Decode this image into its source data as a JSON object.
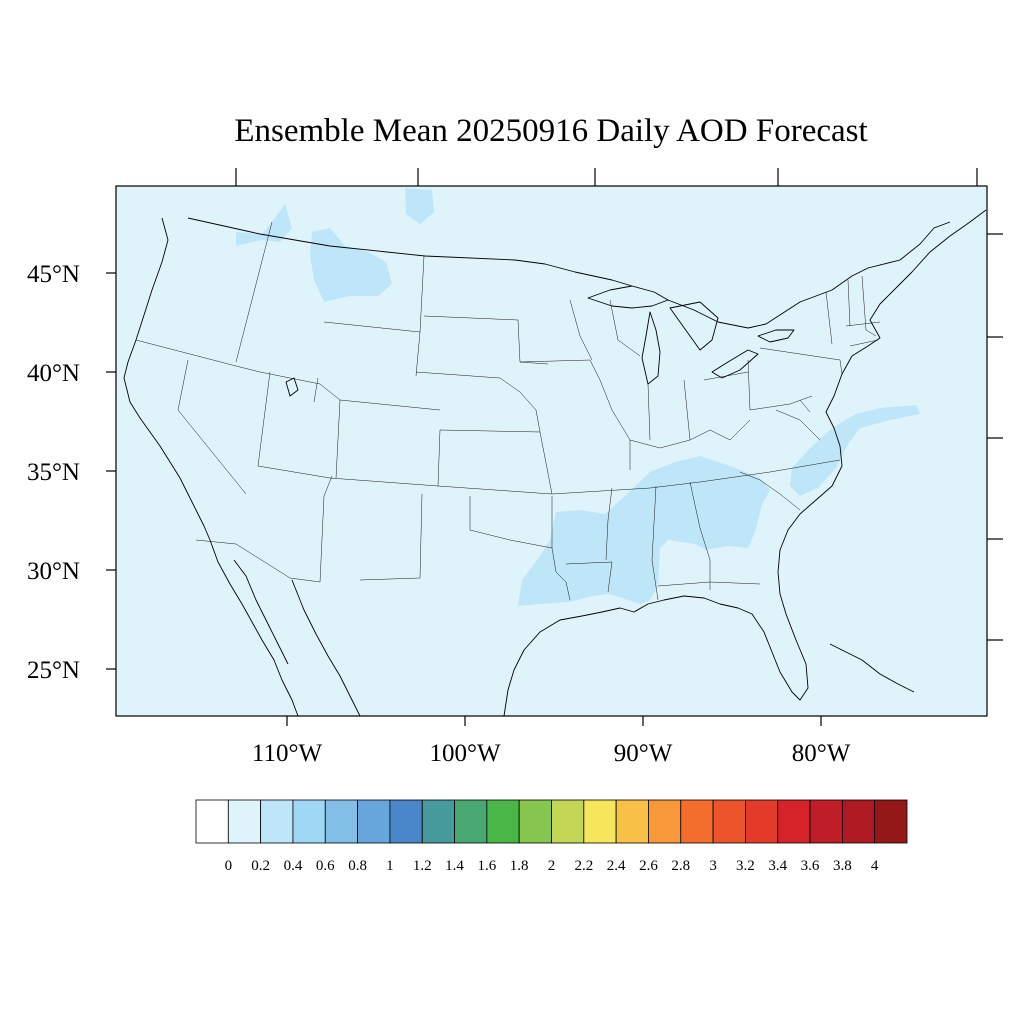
{
  "title": "Ensemble Mean 20250916 Daily AOD Forecast",
  "map": {
    "lat_labels": [
      "45°N",
      "40°N",
      "35°N",
      "30°N",
      "25°N"
    ],
    "lon_labels": [
      "110°W",
      "100°W",
      "90°W",
      "80°W"
    ],
    "colors": {
      "background": "#dff3fb",
      "elevated": "#bee6f8",
      "boundary": "#000000"
    }
  },
  "colorbar": {
    "labels": [
      "0",
      "0.2",
      "0.4",
      "0.6",
      "0.8",
      "1",
      "1.2",
      "1.4",
      "1.6",
      "1.8",
      "2",
      "2.2",
      "2.4",
      "2.6",
      "2.8",
      "3",
      "3.2",
      "3.4",
      "3.6",
      "3.8",
      "4"
    ],
    "colors": [
      "#ffffff",
      "#dff3fb",
      "#bee6f8",
      "#9fd8f4",
      "#82bfe6",
      "#67a6db",
      "#4a87c9",
      "#479b9c",
      "#47a872",
      "#4ab646",
      "#87c64e",
      "#c4d655",
      "#f6e65b",
      "#f8c046",
      "#f7993b",
      "#f46e2b",
      "#ec5429",
      "#e33b27",
      "#d42329",
      "#c01e26",
      "#ad1a22",
      "#951818"
    ]
  }
}
